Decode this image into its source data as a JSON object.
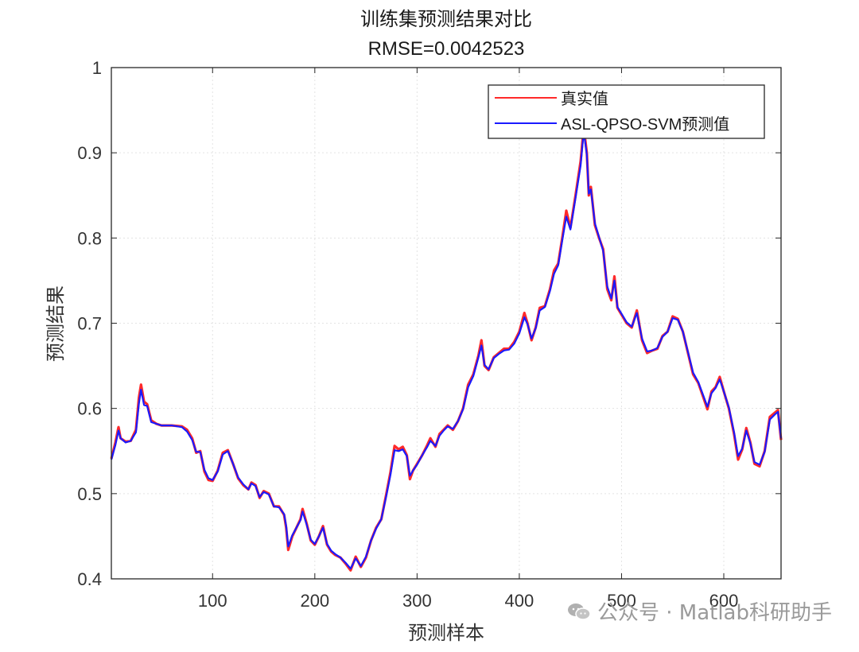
{
  "chart_data": {
    "type": "line",
    "title": "训练集预测结果对比",
    "subtitle": "RMSE=0.0042523",
    "xlabel": "预测样本",
    "ylabel": "预测结果",
    "xlim": [
      1,
      656
    ],
    "ylim": [
      0.4,
      1.0
    ],
    "xticks": [
      100,
      200,
      300,
      400,
      500,
      600
    ],
    "yticks": [
      0.4,
      0.5,
      0.6,
      0.7,
      0.8,
      0.9,
      1
    ],
    "ytick_labels": [
      "0.4",
      "0.5",
      "0.6",
      "0.7",
      "0.8",
      "0.9",
      "1"
    ],
    "xtick_labels": [
      "100",
      "200",
      "300",
      "400",
      "500",
      "600"
    ],
    "grid": true,
    "legend_position": "top-right",
    "series": [
      {
        "name": "真实值",
        "color": "#ff2a2a",
        "points": [
          [
            1,
            0.541
          ],
          [
            5,
            0.56
          ],
          [
            8,
            0.578
          ],
          [
            10,
            0.565
          ],
          [
            15,
            0.561
          ],
          [
            20,
            0.562
          ],
          [
            25,
            0.575
          ],
          [
            28,
            0.613
          ],
          [
            30,
            0.628
          ],
          [
            33,
            0.608
          ],
          [
            36,
            0.605
          ],
          [
            40,
            0.586
          ],
          [
            45,
            0.582
          ],
          [
            50,
            0.58
          ],
          [
            60,
            0.58
          ],
          [
            70,
            0.579
          ],
          [
            75,
            0.575
          ],
          [
            80,
            0.565
          ],
          [
            84,
            0.548
          ],
          [
            88,
            0.55
          ],
          [
            92,
            0.526
          ],
          [
            96,
            0.516
          ],
          [
            100,
            0.515
          ],
          [
            105,
            0.527
          ],
          [
            110,
            0.548
          ],
          [
            115,
            0.551
          ],
          [
            120,
            0.535
          ],
          [
            125,
            0.518
          ],
          [
            130,
            0.51
          ],
          [
            135,
            0.505
          ],
          [
            138,
            0.513
          ],
          [
            142,
            0.51
          ],
          [
            146,
            0.495
          ],
          [
            150,
            0.503
          ],
          [
            155,
            0.5
          ],
          [
            160,
            0.485
          ],
          [
            165,
            0.485
          ],
          [
            170,
            0.475
          ],
          [
            172,
            0.46
          ],
          [
            174,
            0.434
          ],
          [
            178,
            0.45
          ],
          [
            182,
            0.46
          ],
          [
            186,
            0.47
          ],
          [
            188,
            0.482
          ],
          [
            192,
            0.465
          ],
          [
            196,
            0.445
          ],
          [
            200,
            0.44
          ],
          [
            204,
            0.45
          ],
          [
            208,
            0.462
          ],
          [
            212,
            0.44
          ],
          [
            216,
            0.432
          ],
          [
            220,
            0.428
          ],
          [
            225,
            0.425
          ],
          [
            230,
            0.418
          ],
          [
            235,
            0.41
          ],
          [
            240,
            0.426
          ],
          [
            245,
            0.414
          ],
          [
            250,
            0.425
          ],
          [
            255,
            0.445
          ],
          [
            260,
            0.46
          ],
          [
            265,
            0.47
          ],
          [
            270,
            0.5
          ],
          [
            274,
            0.525
          ],
          [
            278,
            0.556
          ],
          [
            282,
            0.552
          ],
          [
            286,
            0.555
          ],
          [
            290,
            0.545
          ],
          [
            293,
            0.517
          ],
          [
            296,
            0.527
          ],
          [
            300,
            0.535
          ],
          [
            305,
            0.545
          ],
          [
            310,
            0.557
          ],
          [
            313,
            0.565
          ],
          [
            318,
            0.555
          ],
          [
            322,
            0.57
          ],
          [
            326,
            0.575
          ],
          [
            330,
            0.58
          ],
          [
            335,
            0.575
          ],
          [
            340,
            0.585
          ],
          [
            345,
            0.6
          ],
          [
            350,
            0.628
          ],
          [
            355,
            0.64
          ],
          [
            360,
            0.662
          ],
          [
            363,
            0.68
          ],
          [
            366,
            0.65
          ],
          [
            370,
            0.645
          ],
          [
            375,
            0.66
          ],
          [
            380,
            0.665
          ],
          [
            385,
            0.67
          ],
          [
            390,
            0.67
          ],
          [
            395,
            0.678
          ],
          [
            400,
            0.69
          ],
          [
            405,
            0.712
          ],
          [
            408,
            0.7
          ],
          [
            412,
            0.68
          ],
          [
            416,
            0.695
          ],
          [
            420,
            0.718
          ],
          [
            425,
            0.72
          ],
          [
            430,
            0.74
          ],
          [
            434,
            0.762
          ],
          [
            438,
            0.77
          ],
          [
            442,
            0.8
          ],
          [
            446,
            0.832
          ],
          [
            450,
            0.812
          ],
          [
            455,
            0.85
          ],
          [
            460,
            0.89
          ],
          [
            463,
            0.93
          ],
          [
            466,
            0.9
          ],
          [
            468,
            0.85
          ],
          [
            470,
            0.86
          ],
          [
            474,
            0.815
          ],
          [
            478,
            0.8
          ],
          [
            482,
            0.787
          ],
          [
            486,
            0.74
          ],
          [
            490,
            0.727
          ],
          [
            493,
            0.755
          ],
          [
            496,
            0.718
          ],
          [
            500,
            0.71
          ],
          [
            505,
            0.7
          ],
          [
            510,
            0.695
          ],
          [
            515,
            0.715
          ],
          [
            520,
            0.68
          ],
          [
            525,
            0.665
          ],
          [
            530,
            0.668
          ],
          [
            535,
            0.67
          ],
          [
            540,
            0.685
          ],
          [
            545,
            0.69
          ],
          [
            550,
            0.708
          ],
          [
            555,
            0.705
          ],
          [
            560,
            0.69
          ],
          [
            565,
            0.665
          ],
          [
            570,
            0.64
          ],
          [
            575,
            0.63
          ],
          [
            580,
            0.613
          ],
          [
            584,
            0.599
          ],
          [
            588,
            0.62
          ],
          [
            592,
            0.625
          ],
          [
            596,
            0.637
          ],
          [
            600,
            0.62
          ],
          [
            605,
            0.6
          ],
          [
            610,
            0.57
          ],
          [
            614,
            0.54
          ],
          [
            618,
            0.552
          ],
          [
            622,
            0.577
          ],
          [
            626,
            0.56
          ],
          [
            630,
            0.535
          ],
          [
            635,
            0.532
          ],
          [
            640,
            0.55
          ],
          [
            645,
            0.59
          ],
          [
            650,
            0.595
          ],
          [
            653,
            0.598
          ],
          [
            656,
            0.563
          ]
        ]
      },
      {
        "name": "ASL-QPSO-SVM预测值",
        "color": "#1a1aff",
        "points": [
          [
            1,
            0.54
          ],
          [
            5,
            0.557
          ],
          [
            8,
            0.574
          ],
          [
            10,
            0.565
          ],
          [
            15,
            0.56
          ],
          [
            20,
            0.562
          ],
          [
            25,
            0.572
          ],
          [
            28,
            0.606
          ],
          [
            30,
            0.622
          ],
          [
            33,
            0.604
          ],
          [
            36,
            0.603
          ],
          [
            40,
            0.584
          ],
          [
            45,
            0.582
          ],
          [
            50,
            0.58
          ],
          [
            60,
            0.58
          ],
          [
            70,
            0.578
          ],
          [
            75,
            0.573
          ],
          [
            80,
            0.563
          ],
          [
            84,
            0.549
          ],
          [
            88,
            0.549
          ],
          [
            92,
            0.528
          ],
          [
            96,
            0.518
          ],
          [
            100,
            0.516
          ],
          [
            105,
            0.526
          ],
          [
            110,
            0.546
          ],
          [
            115,
            0.55
          ],
          [
            120,
            0.535
          ],
          [
            125,
            0.519
          ],
          [
            130,
            0.511
          ],
          [
            135,
            0.505
          ],
          [
            138,
            0.512
          ],
          [
            142,
            0.509
          ],
          [
            146,
            0.496
          ],
          [
            150,
            0.502
          ],
          [
            155,
            0.499
          ],
          [
            160,
            0.485
          ],
          [
            165,
            0.484
          ],
          [
            170,
            0.476
          ],
          [
            172,
            0.462
          ],
          [
            174,
            0.438
          ],
          [
            178,
            0.451
          ],
          [
            182,
            0.46
          ],
          [
            186,
            0.469
          ],
          [
            188,
            0.479
          ],
          [
            192,
            0.464
          ],
          [
            196,
            0.446
          ],
          [
            200,
            0.441
          ],
          [
            204,
            0.45
          ],
          [
            208,
            0.46
          ],
          [
            212,
            0.441
          ],
          [
            216,
            0.433
          ],
          [
            220,
            0.429
          ],
          [
            225,
            0.425
          ],
          [
            230,
            0.419
          ],
          [
            235,
            0.412
          ],
          [
            240,
            0.424
          ],
          [
            245,
            0.415
          ],
          [
            250,
            0.426
          ],
          [
            255,
            0.445
          ],
          [
            260,
            0.459
          ],
          [
            265,
            0.47
          ],
          [
            270,
            0.498
          ],
          [
            274,
            0.522
          ],
          [
            278,
            0.551
          ],
          [
            282,
            0.55
          ],
          [
            286,
            0.552
          ],
          [
            290,
            0.544
          ],
          [
            293,
            0.521
          ],
          [
            296,
            0.527
          ],
          [
            300,
            0.534
          ],
          [
            305,
            0.545
          ],
          [
            310,
            0.555
          ],
          [
            313,
            0.562
          ],
          [
            318,
            0.556
          ],
          [
            322,
            0.568
          ],
          [
            326,
            0.574
          ],
          [
            330,
            0.579
          ],
          [
            335,
            0.576
          ],
          [
            340,
            0.585
          ],
          [
            345,
            0.599
          ],
          [
            350,
            0.625
          ],
          [
            355,
            0.638
          ],
          [
            360,
            0.66
          ],
          [
            363,
            0.674
          ],
          [
            366,
            0.651
          ],
          [
            370,
            0.646
          ],
          [
            375,
            0.659
          ],
          [
            380,
            0.664
          ],
          [
            385,
            0.668
          ],
          [
            390,
            0.669
          ],
          [
            395,
            0.676
          ],
          [
            400,
            0.688
          ],
          [
            405,
            0.707
          ],
          [
            408,
            0.699
          ],
          [
            412,
            0.682
          ],
          [
            416,
            0.694
          ],
          [
            420,
            0.715
          ],
          [
            425,
            0.719
          ],
          [
            430,
            0.738
          ],
          [
            434,
            0.758
          ],
          [
            438,
            0.768
          ],
          [
            442,
            0.797
          ],
          [
            446,
            0.825
          ],
          [
            450,
            0.81
          ],
          [
            455,
            0.847
          ],
          [
            460,
            0.885
          ],
          [
            463,
            0.925
          ],
          [
            466,
            0.898
          ],
          [
            468,
            0.852
          ],
          [
            470,
            0.857
          ],
          [
            474,
            0.817
          ],
          [
            478,
            0.801
          ],
          [
            482,
            0.785
          ],
          [
            486,
            0.743
          ],
          [
            490,
            0.729
          ],
          [
            493,
            0.75
          ],
          [
            496,
            0.719
          ],
          [
            500,
            0.711
          ],
          [
            505,
            0.701
          ],
          [
            510,
            0.696
          ],
          [
            515,
            0.712
          ],
          [
            520,
            0.682
          ],
          [
            525,
            0.667
          ],
          [
            530,
            0.668
          ],
          [
            535,
            0.671
          ],
          [
            540,
            0.684
          ],
          [
            545,
            0.69
          ],
          [
            550,
            0.706
          ],
          [
            555,
            0.704
          ],
          [
            560,
            0.69
          ],
          [
            565,
            0.666
          ],
          [
            570,
            0.642
          ],
          [
            575,
            0.631
          ],
          [
            580,
            0.615
          ],
          [
            584,
            0.602
          ],
          [
            588,
            0.618
          ],
          [
            592,
            0.624
          ],
          [
            596,
            0.634
          ],
          [
            600,
            0.62
          ],
          [
            605,
            0.601
          ],
          [
            610,
            0.572
          ],
          [
            614,
            0.544
          ],
          [
            618,
            0.553
          ],
          [
            622,
            0.574
          ],
          [
            626,
            0.559
          ],
          [
            630,
            0.537
          ],
          [
            635,
            0.534
          ],
          [
            640,
            0.549
          ],
          [
            645,
            0.587
          ],
          [
            650,
            0.593
          ],
          [
            653,
            0.596
          ],
          [
            656,
            0.565
          ]
        ]
      }
    ]
  },
  "watermark": {
    "text": "公众号 · Matlab科研助手",
    "icon": "wechat-icon"
  }
}
